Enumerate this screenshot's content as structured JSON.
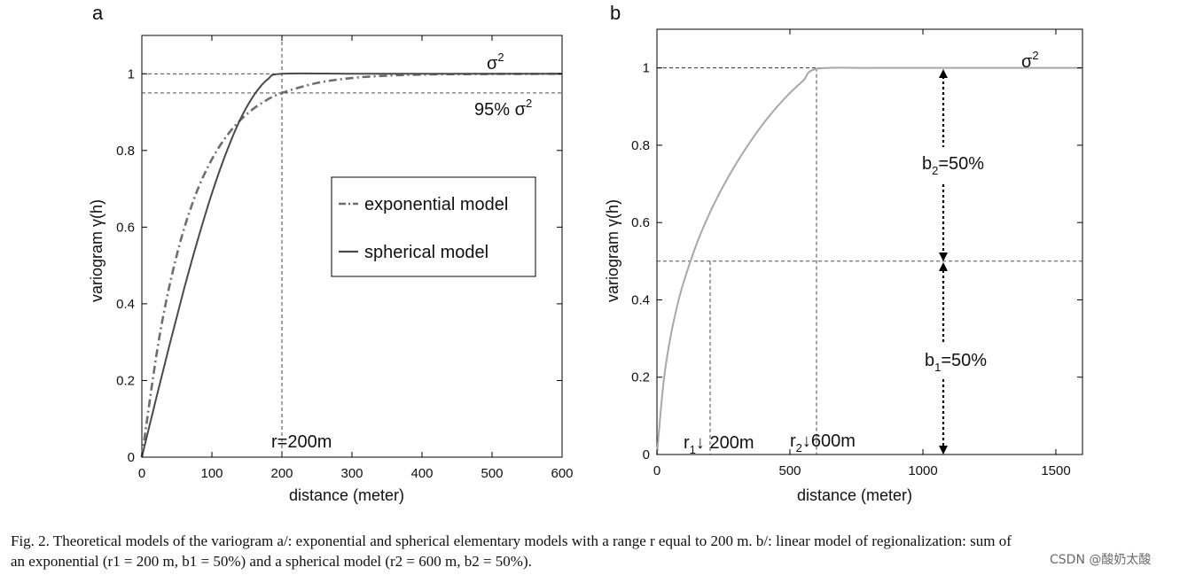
{
  "chart_data": [
    {
      "panel_label": "a",
      "type": "line",
      "xlabel": "distance (meter)",
      "ylabel": "variogram γ(h)",
      "xlim": [
        0,
        600
      ],
      "ylim": [
        0,
        1.1
      ],
      "xticks": [
        0,
        100,
        200,
        300,
        400,
        500,
        600
      ],
      "yticks": [
        0,
        0.2,
        0.4,
        0.6,
        0.8,
        1
      ],
      "ytick_labels": [
        "0",
        "0.2",
        "0.4",
        "0.6",
        "0.8",
        "1"
      ],
      "grid": false,
      "legend_position": "center-right",
      "series": [
        {
          "name": "exponential model",
          "style": "dash-dot",
          "color": "#6e6e6e",
          "x": [
            0,
            25,
            50,
            75,
            100,
            125,
            150,
            175,
            200,
            250,
            300,
            350,
            400,
            450,
            500,
            550,
            600
          ],
          "y": [
            0,
            0.313,
            0.528,
            0.676,
            0.777,
            0.847,
            0.895,
            0.928,
            0.95,
            0.976,
            0.989,
            0.995,
            0.998,
            0.999,
            0.9994,
            0.9997,
            0.9999
          ]
        },
        {
          "name": "spherical model",
          "style": "solid",
          "color": "#4a4a4a",
          "x": [
            0,
            20,
            40,
            60,
            80,
            100,
            120,
            140,
            160,
            180,
            200,
            300,
            400,
            500,
            600
          ],
          "y": [
            0,
            0.15,
            0.296,
            0.437,
            0.568,
            0.688,
            0.792,
            0.879,
            0.944,
            0.986,
            1,
            1,
            1,
            1,
            1
          ]
        }
      ],
      "reference_lines": [
        {
          "type": "horizontal",
          "value": 1,
          "label": "σ",
          "label_sup": "2"
        },
        {
          "type": "horizontal",
          "value": 0.95,
          "label": "95% σ",
          "label_sup": "2"
        },
        {
          "type": "vertical",
          "value": 200,
          "label": "r=200m"
        }
      ]
    },
    {
      "panel_label": "b",
      "type": "line",
      "xlabel": "distance (meter)",
      "ylabel": "variogram γ(h)",
      "xlim": [
        0,
        1600
      ],
      "ylim": [
        0,
        1.1
      ],
      "xticks": [
        0,
        500,
        1000,
        1500
      ],
      "yticks": [
        0,
        0.2,
        0.4,
        0.6,
        0.8,
        1
      ],
      "ytick_labels": [
        "0",
        "0.2",
        "0.4",
        "0.6",
        "0.8",
        "1"
      ],
      "grid": false,
      "series": [
        {
          "style": "solid",
          "color": "#a8a8a8",
          "x": [
            0,
            25,
            50,
            75,
            100,
            150,
            200,
            250,
            300,
            350,
            400,
            450,
            500,
            550,
            600,
            800,
            1000,
            1200,
            1400,
            1600
          ],
          "y": [
            0,
            0.188,
            0.3,
            0.381,
            0.445,
            0.546,
            0.627,
            0.695,
            0.755,
            0.808,
            0.856,
            0.898,
            0.935,
            0.967,
            0.9975,
            0.9999,
            1,
            1,
            1,
            1
          ]
        }
      ],
      "reference_lines": [
        {
          "type": "horizontal",
          "value": 1,
          "label": "σ",
          "label_sup": "2"
        },
        {
          "type": "horizontal",
          "value": 0.5
        },
        {
          "type": "vertical",
          "value": 200,
          "ymax": 0.5
        },
        {
          "type": "vertical",
          "value": 600,
          "ymax": 1
        }
      ],
      "annotations": [
        {
          "text": "b",
          "sub": "2",
          "rest": "=50%"
        },
        {
          "text": "b",
          "sub": "1",
          "rest": "=50%"
        },
        {
          "text": "r",
          "sub": "1",
          "rest": "↓ 200m"
        },
        {
          "text": "r",
          "sub": "2",
          "rest": "↓600m"
        }
      ]
    }
  ],
  "caption": {
    "line1": "Fig. 2. Theoretical models of the variogram a/: exponential and spherical elementary models with a range r equal to 200 m. b/: linear model of regionalization: sum of",
    "line2": "an exponential (r1 = 200 m, b1 = 50%) and a spherical model (r2 = 600 m, b2 = 50%)."
  },
  "watermark": "CSDN @酸奶太酸"
}
